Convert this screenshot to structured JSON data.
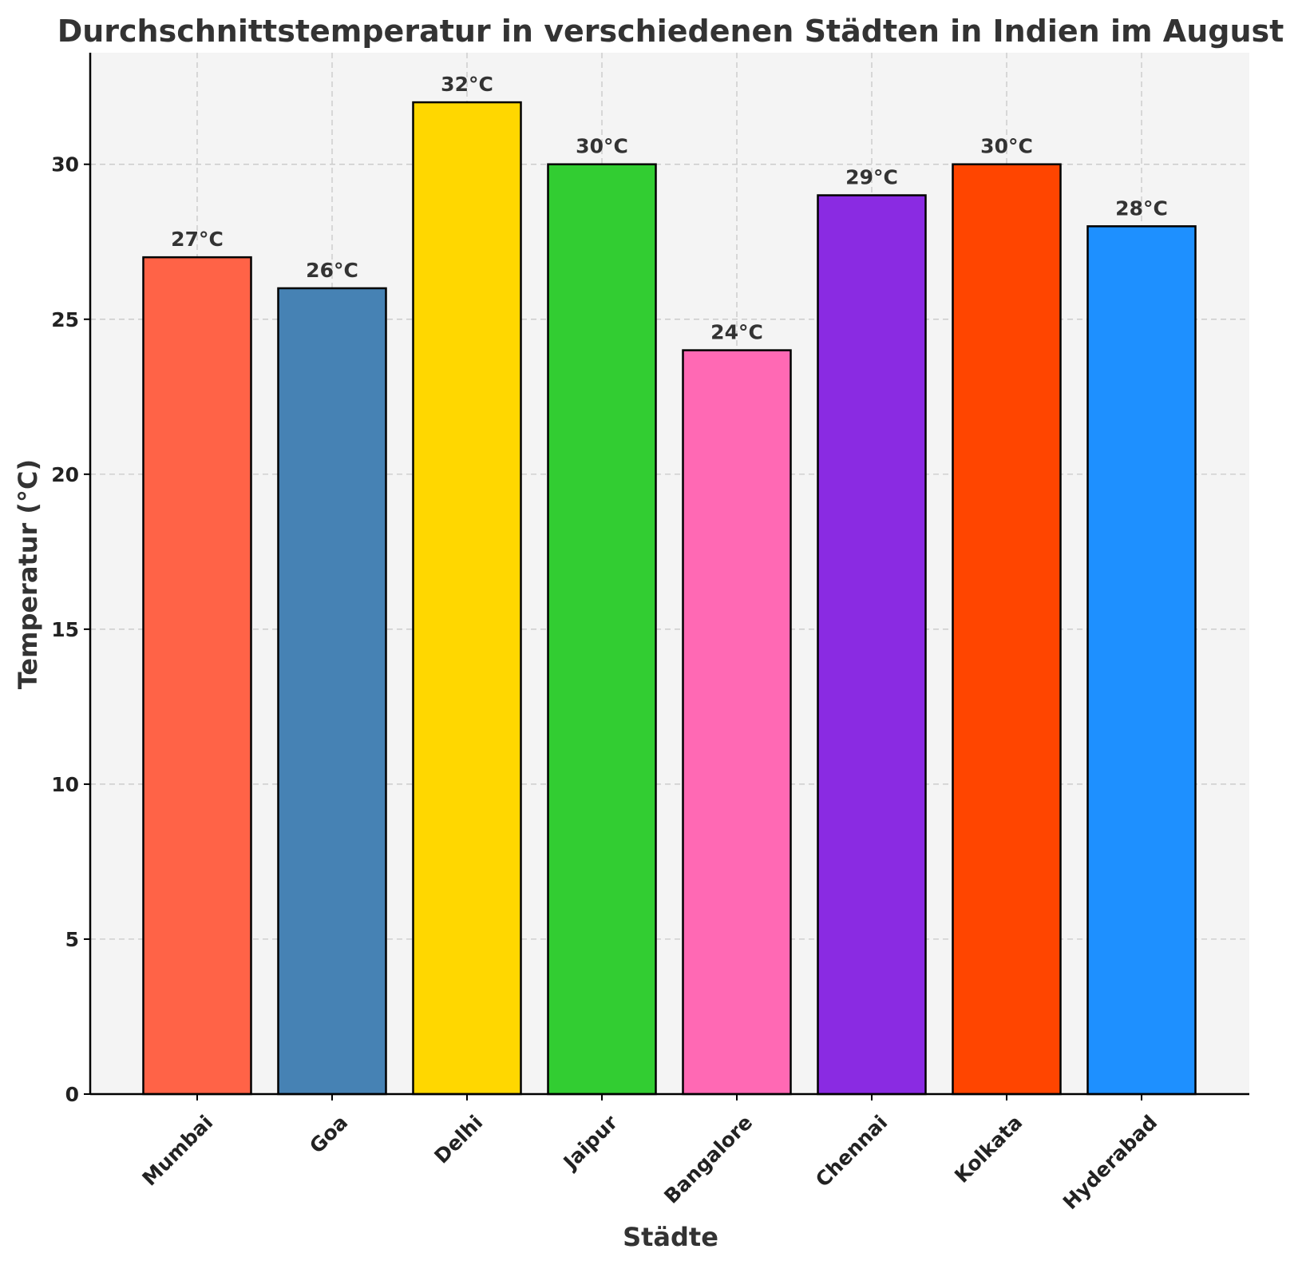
{
  "chart_data": {
    "type": "bar",
    "title": "Durchschnittstemperatur in verschiedenen Städten in Indien im August",
    "xlabel": "Städte",
    "ylabel": "Temperatur (°C)",
    "categories": [
      "Mumbai",
      "Goa",
      "Delhi",
      "Jaipur",
      "Bangalore",
      "Chennai",
      "Kolkata",
      "Hyderabad"
    ],
    "values": [
      27,
      26,
      32,
      30,
      24,
      29,
      30,
      28
    ],
    "data_labels": [
      "27°C",
      "26°C",
      "32°C",
      "30°C",
      "24°C",
      "29°C",
      "30°C",
      "28°C"
    ],
    "colors": [
      "#ff6347",
      "#4682b4",
      "#ffd700",
      "#32cd32",
      "#ff69b4",
      "#8a2be2",
      "#ff4500",
      "#1e90ff"
    ],
    "y_ticks": [
      0,
      5,
      10,
      15,
      20,
      25,
      30
    ],
    "ylim": [
      0,
      33.6
    ],
    "grid": true,
    "background_color": "#f4f4f4",
    "edge_color": "#000000"
  }
}
